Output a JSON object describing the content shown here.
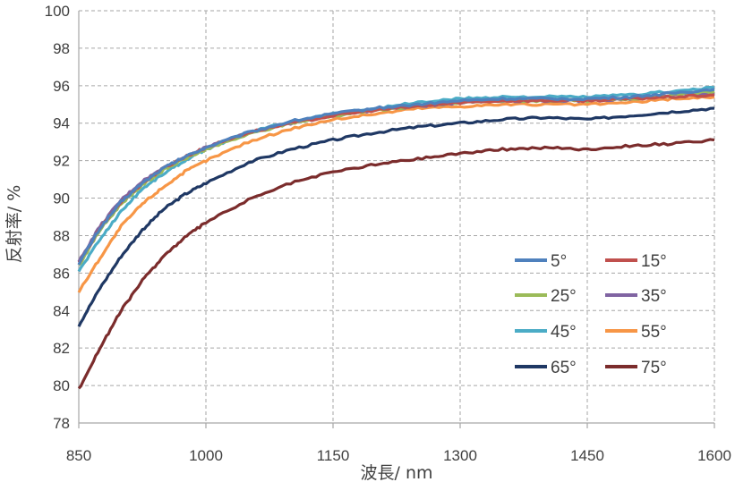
{
  "chart_data": {
    "type": "line",
    "xlabel": "波長/ nm",
    "ylabel": "反射率/ %",
    "xlim": [
      850,
      1600
    ],
    "ylim": [
      78,
      100
    ],
    "x_ticks": [
      "850",
      "1000",
      "1150",
      "1300",
      "1450",
      "1600"
    ],
    "y_ticks": [
      "78",
      "80",
      "82",
      "84",
      "86",
      "88",
      "90",
      "92",
      "94",
      "96",
      "98",
      "100"
    ],
    "grid": true,
    "legend_position": "bottom-right",
    "x": [
      850,
      875,
      900,
      925,
      950,
      975,
      1000,
      1050,
      1100,
      1150,
      1200,
      1250,
      1300,
      1350,
      1400,
      1450,
      1500,
      1550,
      1600
    ],
    "series": [
      {
        "name": "5°",
        "color": "#4f81bd",
        "values": [
          86.5,
          88.4,
          89.8,
          90.8,
          91.6,
          92.2,
          92.7,
          93.5,
          94.1,
          94.5,
          94.8,
          95.0,
          95.2,
          95.3,
          95.3,
          95.3,
          95.4,
          95.6,
          95.8
        ]
      },
      {
        "name": "15°",
        "color": "#c0504d",
        "values": [
          86.5,
          88.4,
          89.8,
          90.8,
          91.6,
          92.2,
          92.7,
          93.5,
          94.0,
          94.4,
          94.7,
          94.9,
          95.1,
          95.2,
          95.2,
          95.2,
          95.3,
          95.4,
          95.5
        ]
      },
      {
        "name": "25°",
        "color": "#9bbb59",
        "values": [
          86.4,
          88.3,
          89.7,
          90.7,
          91.5,
          92.1,
          92.6,
          93.4,
          94.0,
          94.4,
          94.7,
          94.9,
          95.1,
          95.2,
          95.2,
          95.2,
          95.3,
          95.5,
          95.7
        ]
      },
      {
        "name": "35°",
        "color": "#8064a2",
        "values": [
          86.6,
          88.5,
          89.9,
          90.9,
          91.6,
          92.2,
          92.7,
          93.5,
          94.0,
          94.4,
          94.7,
          94.9,
          95.1,
          95.2,
          95.2,
          95.2,
          95.3,
          95.5,
          95.6
        ]
      },
      {
        "name": "45°",
        "color": "#4bacc6",
        "values": [
          86.1,
          87.8,
          89.3,
          90.5,
          91.3,
          92.0,
          92.6,
          93.5,
          94.1,
          94.5,
          94.8,
          95.1,
          95.3,
          95.4,
          95.4,
          95.4,
          95.5,
          95.7,
          95.9
        ]
      },
      {
        "name": "55°",
        "color": "#f79646",
        "values": [
          85.0,
          86.8,
          88.5,
          89.7,
          90.6,
          91.4,
          92.0,
          93.0,
          93.7,
          94.2,
          94.5,
          94.8,
          94.9,
          95.0,
          95.0,
          95.0,
          95.1,
          95.3,
          95.4
        ]
      },
      {
        "name": "65°",
        "color": "#1f3864",
        "values": [
          83.2,
          85.2,
          86.9,
          88.3,
          89.4,
          90.2,
          90.8,
          91.9,
          92.6,
          93.1,
          93.5,
          93.8,
          94.0,
          94.2,
          94.3,
          94.2,
          94.4,
          94.6,
          94.8
        ]
      },
      {
        "name": "75°",
        "color": "#7b2c2c",
        "values": [
          79.8,
          82.0,
          84.0,
          85.6,
          86.9,
          87.9,
          88.7,
          89.9,
          90.8,
          91.4,
          91.8,
          92.1,
          92.4,
          92.6,
          92.7,
          92.6,
          92.8,
          92.9,
          93.1
        ]
      }
    ]
  }
}
